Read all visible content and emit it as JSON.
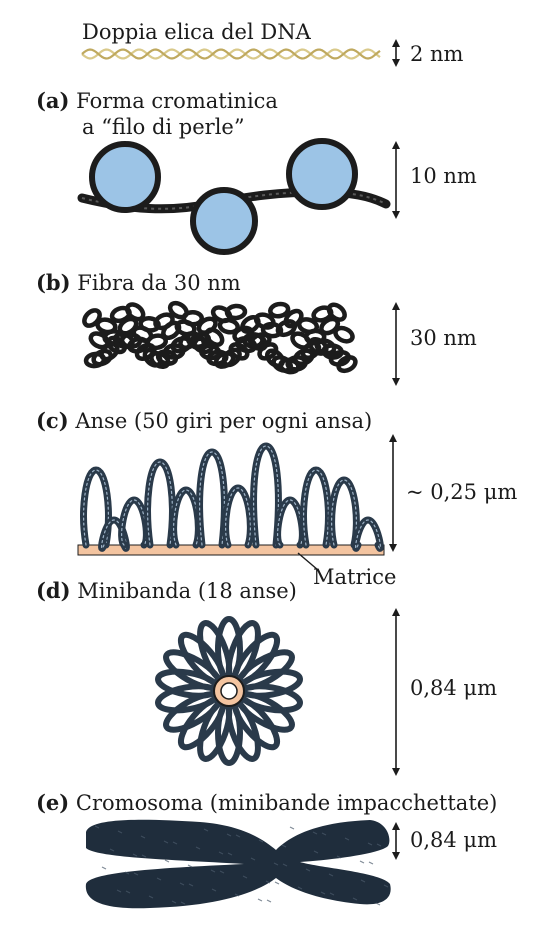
{
  "dna": {
    "title": "Doppia elica del DNA",
    "size": "2 nm"
  },
  "panels": [
    {
      "letter": "(a)",
      "title_line1": "Forma cromatinica",
      "title_line2": "a “filo di perle”",
      "size": "10 nm"
    },
    {
      "letter": "(b)",
      "title": "Fibra da 30 nm",
      "size": "30 nm"
    },
    {
      "letter": "(c)",
      "title": "Anse (50 giri per ogni ansa)",
      "size": "~ 0,25 μm",
      "extra_label": "Matrice"
    },
    {
      "letter": "(d)",
      "title": "Minibanda (18 anse)",
      "size": "0,84 μm"
    },
    {
      "letter": "(e)",
      "title": "Cromosoma (minibande impacchettate)",
      "size": "0,84 μm"
    }
  ],
  "colors": {
    "dark": "#1c1c1c",
    "fiber": "#2a3a4a",
    "bead": "#9cc4e6",
    "matrix": "#f3c4a0",
    "helix": "#d9c98a"
  }
}
